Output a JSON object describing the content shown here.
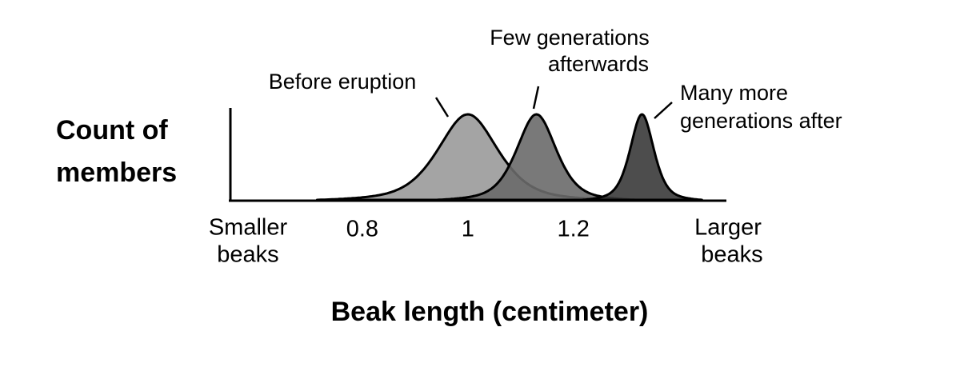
{
  "chart_data": {
    "type": "distribution",
    "xlabel": "Beak length (centimeter)",
    "ylabel": [
      "Count of",
      "members"
    ],
    "x_start_label": [
      "Smaller",
      "beaks"
    ],
    "x_end_label": [
      "Larger",
      "beaks"
    ],
    "xlim": [
      0.55,
      1.49
    ],
    "xticks": [
      0.8,
      1,
      1.2
    ],
    "series": [
      {
        "name": [
          "Before eruption"
        ],
        "color": "#9a9a9a",
        "center": 1.0,
        "spread": 0.068
      },
      {
        "name": [
          "Few generations",
          "afterwards"
        ],
        "color": "#6a6a6a",
        "center": 1.13,
        "spread": 0.045
      },
      {
        "name": [
          "Many more",
          "generations after"
        ],
        "color": "#3a3a3a",
        "center": 1.33,
        "spread": 0.027
      }
    ]
  }
}
